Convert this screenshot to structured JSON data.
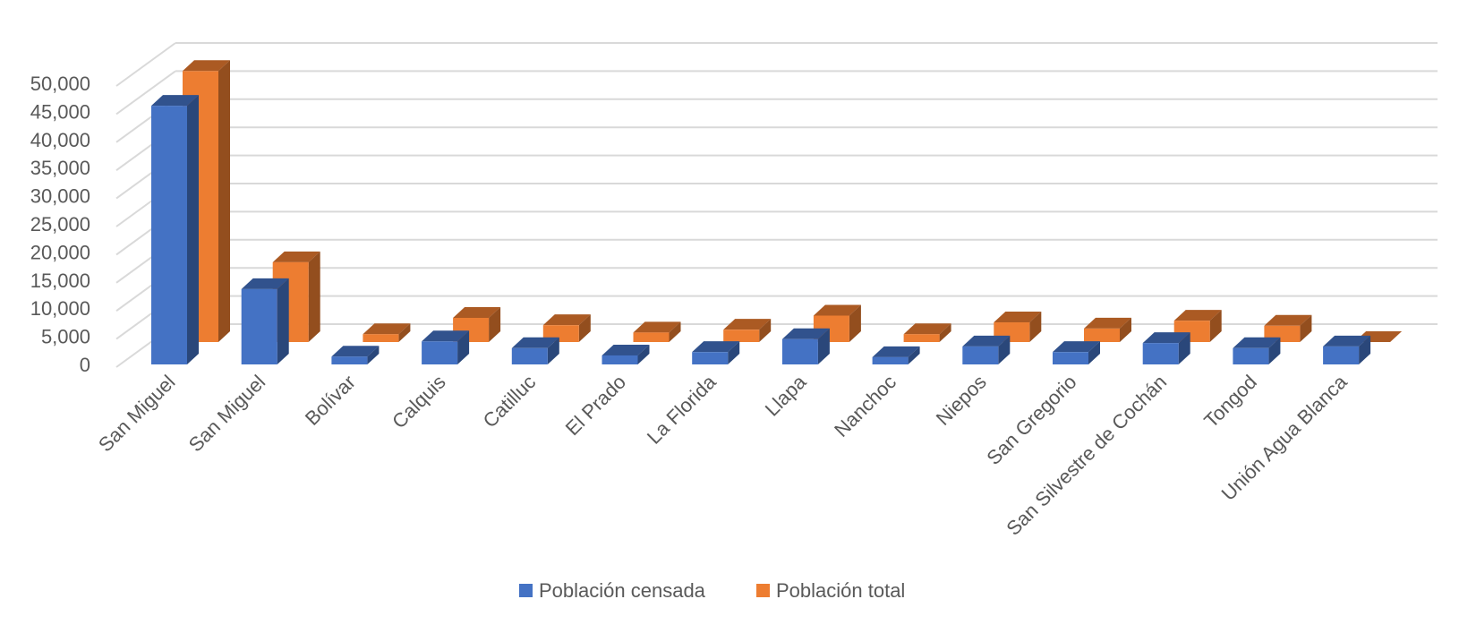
{
  "chart_data": {
    "type": "bar",
    "subtype": "3d-clustered-column",
    "title": "",
    "xlabel": "",
    "ylabel": "",
    "ylim": [
      0,
      50000
    ],
    "yticks": [
      "0",
      "5,000",
      "10,000",
      "15,000",
      "20,000",
      "25,000",
      "30,000",
      "35,000",
      "40,000",
      "45,000",
      "50,000"
    ],
    "grid": true,
    "legend_position": "bottom",
    "categories": [
      "San Miguel",
      "San Miguel",
      "Bolívar",
      "Calquis",
      "Catilluc",
      "El Prado",
      "La Florida",
      "Llapa",
      "Nanchoc",
      "Niepos",
      "San Gregorio",
      "San Silvestre de Cochán",
      "Tongod",
      "Unión Agua Blanca"
    ],
    "series": [
      {
        "name": "Población censada",
        "color": "#4472C4",
        "values": [
          46000,
          13400,
          1400,
          4100,
          2900,
          1600,
          2200,
          4500,
          1300,
          3200,
          2200,
          3800,
          2900,
          3200
        ]
      },
      {
        "name": "Población total",
        "color": "#ED7D31",
        "values": [
          48200,
          14200,
          1400,
          4300,
          3000,
          1700,
          2200,
          4700,
          1400,
          3500,
          2400,
          3800,
          2900,
          0
        ]
      }
    ]
  }
}
